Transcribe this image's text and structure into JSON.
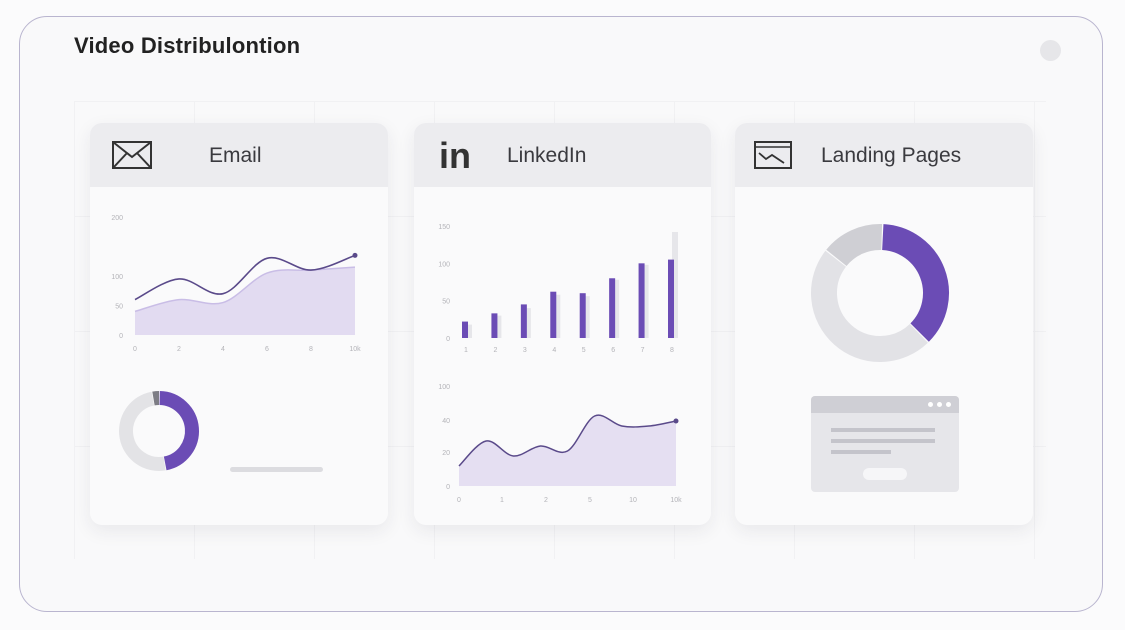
{
  "page": {
    "title": "Video Distribulontion"
  },
  "colors": {
    "accent": "#6b4cb5",
    "light_accent": "#d9d1ec",
    "gray": "#dcdce0"
  },
  "cards": [
    {
      "title": "Email",
      "icon": "envelope-icon"
    },
    {
      "title": "LinkedIn",
      "icon": "linkedin-icon",
      "icon_text": "in"
    },
    {
      "title": "Landing Pages",
      "icon": "browser-chart-icon"
    }
  ],
  "chart_data": [
    {
      "type": "area",
      "card": "Email",
      "x_ticks": [
        "0",
        "2",
        "4",
        "6",
        "8",
        "10k"
      ],
      "y_ticks": [
        "0",
        "50",
        "100",
        "200"
      ],
      "x": [
        0,
        2,
        4,
        6,
        8,
        10
      ],
      "series": [
        {
          "values": [
            60,
            95,
            70,
            130,
            110,
            135
          ]
        },
        {
          "values": [
            40,
            60,
            55,
            105,
            110,
            115
          ]
        }
      ],
      "ylim": [
        0,
        200
      ]
    },
    {
      "type": "pie",
      "card": "Email",
      "slices": [
        {
          "label": "purple",
          "value": 47
        },
        {
          "label": "gray",
          "value": 50
        },
        {
          "label": "dark",
          "value": 3
        }
      ],
      "legend_bars": [
        0.55,
        0.62,
        0.55
      ]
    },
    {
      "type": "bar",
      "card": "LinkedIn",
      "categories": [
        "1",
        "2",
        "3",
        "4",
        "5",
        "6",
        "7",
        "8"
      ],
      "x_ticks": [
        "1",
        "2",
        "3",
        "4",
        "5",
        "6",
        "7",
        "8"
      ],
      "y_ticks": [
        "0",
        "50",
        "100",
        "150"
      ],
      "values": [
        22,
        33,
        45,
        62,
        60,
        80,
        100,
        105
      ],
      "values_secondary": [
        18,
        30,
        40,
        58,
        56,
        78,
        98,
        142
      ],
      "ylim": [
        0,
        150
      ]
    },
    {
      "type": "area",
      "card": "LinkedIn",
      "x_ticks": [
        "0",
        "1",
        "2",
        "5",
        "10",
        "10k"
      ],
      "y_ticks": [
        "0",
        "20",
        "40",
        "100"
      ],
      "x": [
        0,
        1,
        2,
        3,
        4,
        5,
        6,
        7,
        8
      ],
      "values": [
        20,
        45,
        30,
        40,
        35,
        70,
        60,
        60,
        65
      ],
      "ylim": [
        0,
        100
      ]
    },
    {
      "type": "pie",
      "card": "Landing Pages",
      "slices": [
        {
          "label": "purple",
          "value": 37
        },
        {
          "label": "light gray",
          "value": 48
        },
        {
          "label": "mid gray",
          "value": 15
        }
      ]
    }
  ]
}
